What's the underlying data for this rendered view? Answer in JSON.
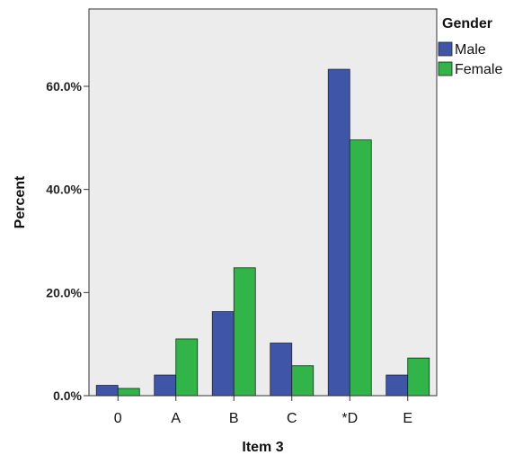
{
  "chart_data": {
    "type": "bar",
    "categories": [
      "0",
      "A",
      "B",
      "C",
      "*D",
      "E"
    ],
    "series": [
      {
        "name": "Male",
        "values": [
          2.0,
          4.0,
          16.3,
          10.2,
          63.3,
          4.0
        ],
        "color": "#3f55a8"
      },
      {
        "name": "Female",
        "values": [
          1.4,
          11.0,
          24.8,
          5.8,
          49.6,
          7.3
        ],
        "color": "#31b548"
      }
    ],
    "xlabel": "Item 3",
    "ylabel": "Percent",
    "ylim": [
      0,
      75
    ],
    "yticks": [
      0,
      20,
      40,
      60
    ],
    "ytick_labels": [
      "0.0%",
      "20.0%",
      "40.0%",
      "60.0%"
    ],
    "legend": {
      "title": "Gender",
      "position": "right"
    },
    "plot_background": "#ececec",
    "grid": false
  }
}
